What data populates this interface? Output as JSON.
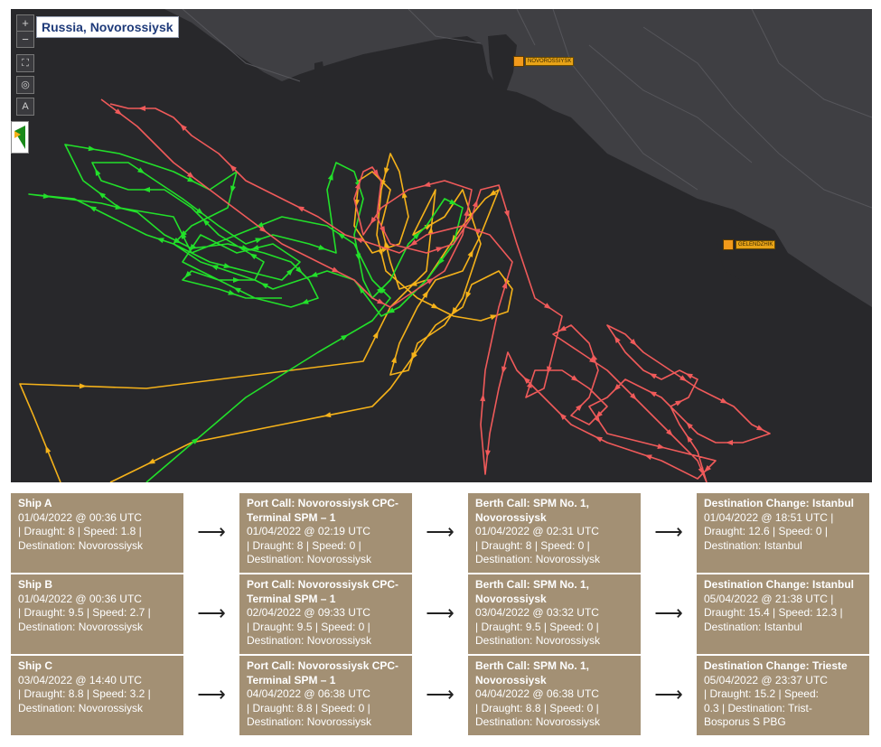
{
  "map": {
    "title": "Russia, Novorossiysk",
    "controls": {
      "zoom_in": "+",
      "zoom_out": "−",
      "fullscreen": "⛶",
      "locate": "◎",
      "north": "A"
    },
    "ports": [
      {
        "name": "NOVOROSSIYSK"
      },
      {
        "name": "GELENDZHIK"
      }
    ],
    "colors": {
      "sea": "#28282b",
      "land": "#3f3f43",
      "ship_a": "#f05a5a",
      "ship_b": "#22e02a",
      "ship_c": "#f5b21a",
      "port": "#f29a1b"
    },
    "track_legend": [
      "Ship A",
      "Ship B",
      "Ship C"
    ]
  },
  "timeline": {
    "arrow_glyph": "⟶",
    "rows": [
      {
        "cards": [
          {
            "heading": "Ship A",
            "body": "01/04/2022 @ 00:36 UTC\n | Draught: 8 | Speed: 1.8 |\nDestination: Novorossiysk"
          },
          {
            "heading": "Port Call: Novorossiysk CPC-\nTerminal SPM – 1",
            "body": "01/04/2022 @ 02:19 UTC\n| Draught: 8 | Speed: 0 |\nDestination: Novorossiysk"
          },
          {
            "heading": "Berth Call: SPM No. 1,\nNovorossiysk",
            "body": "01/04/2022 @ 02:31 UTC\n| Draught: 8 | Speed: 0 |\nDestination: Novorossiysk"
          },
          {
            "heading": "Destination Change: Istanbul",
            "body": "01/04/2022 @ 18:51 UTC |\nDraught: 12.6 | Speed: 0 |\nDestination: Istanbul"
          }
        ]
      },
      {
        "cards": [
          {
            "heading": "Ship B",
            "body": "01/04/2022 @ 00:36 UTC\n | Draught: 9.5 | Speed: 2.7 |\nDestination: Novorossiysk"
          },
          {
            "heading": "Port Call: Novorossiysk CPC-\nTerminal SPM – 1",
            "body": "02/04/2022 @ 09:33 UTC\n| Draught: 9.5 | Speed: 0 |\nDestination: Novorossiysk"
          },
          {
            "heading": "Berth Call: SPM No. 1,\nNovorossiysk",
            "body": "03/04/2022 @ 03:32 UTC\n| Draught: 9.5 | Speed: 0 |\nDestination: Novorossiysk"
          },
          {
            "heading": "Destination Change: Istanbul",
            "body": "05/04/2022 @ 21:38 UTC |\nDraught: 15.4 | Speed: 12.3 |\nDestination: Istanbul"
          }
        ]
      },
      {
        "cards": [
          {
            "heading": "Ship C",
            "body": "03/04/2022 @ 14:40 UTC\n| Draught: 8.8 | Speed: 3.2 |\nDestination: Novorossiysk"
          },
          {
            "heading": "Port Call: Novorossiysk CPC-\nTerminal SPM – 1",
            "body": "04/04/2022 @ 06:38 UTC\n| Draught: 8.8 | Speed: 0 |\nDestination: Novorossiysk"
          },
          {
            "heading": "Berth Call: SPM No. 1,\nNovorossiysk",
            "body": "04/04/2022 @ 06:38 UTC\n| Draught: 8.8 | Speed: 0 |\nDestination: Novorossiysk"
          },
          {
            "heading": "Destination Change: Trieste",
            "body": "05/04/2022 @ 23:37 UTC\n| Draught: 15.2 | Speed:\n0.3 | Destination: Trist-\nBosporus S PBG"
          }
        ]
      }
    ]
  }
}
